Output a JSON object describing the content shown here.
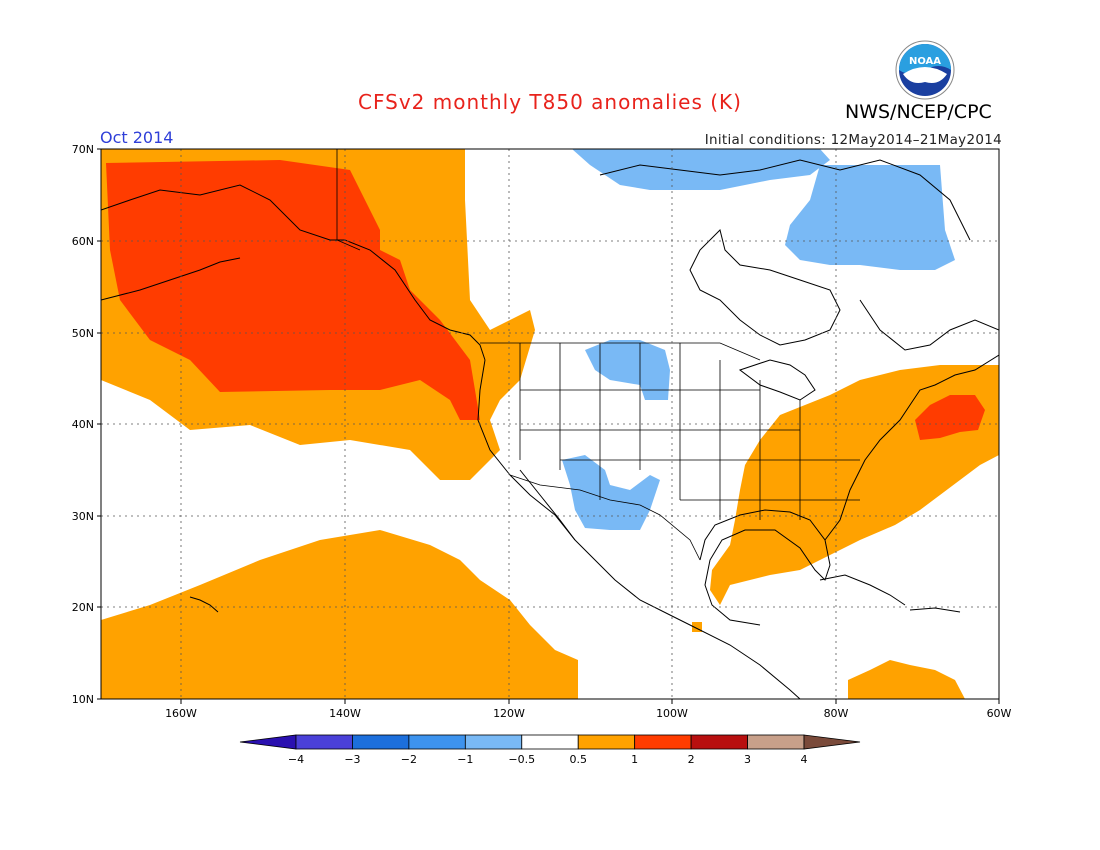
{
  "title": "CFSv2 monthly T850 anomalies (K)",
  "agency": "NWS/NCEP/CPC",
  "period": "Oct 2014",
  "initial_conditions": "Initial conditions: 12May2014–21May2014",
  "logo": {
    "text": "NOAA",
    "icon": "noaa-logo-icon",
    "colors": {
      "sky": "#2a9fe0",
      "ocean": "#1a3fa0"
    }
  },
  "map": {
    "lon_range": [
      -172,
      -60
    ],
    "lat_range": [
      10,
      70
    ],
    "lat_labels": [
      "70N",
      "60N",
      "50N",
      "40N",
      "30N",
      "20N",
      "10N"
    ],
    "lon_labels": [
      "160W",
      "140W",
      "120W",
      "100W",
      "80W",
      "60W"
    ]
  },
  "legend": {
    "labels": [
      "−4",
      "−3",
      "−2",
      "−1",
      "−0.5",
      "0.5",
      "1",
      "2",
      "3",
      "4"
    ],
    "colors": [
      "#2a10b0",
      "#4a40d8",
      "#1c6fdc",
      "#3d93ee",
      "#79b9f5",
      "#ffffff",
      "#ffa200",
      "#ff3c00",
      "#b80f0f",
      "#c8a08a",
      "#7a4a3a"
    ]
  },
  "anomaly_regions": [
    {
      "name": "alaska-gulf",
      "category": "1 to 2",
      "color": "#ff3c00"
    },
    {
      "name": "northeast-pacific",
      "category": "0.5 to 1",
      "color": "#ffa200"
    },
    {
      "name": "subtropical-pacific",
      "category": "0.5 to 1",
      "color": "#ffa200"
    },
    {
      "name": "eastern-us-atlantic",
      "category": "0.5 to 1",
      "color": "#ffa200"
    },
    {
      "name": "western-atlantic",
      "category": "1 to 2",
      "color": "#ff3c00"
    },
    {
      "name": "caribbean",
      "category": "0.5 to 1",
      "color": "#ffa200"
    },
    {
      "name": "canadian-arctic",
      "category": "-1 to -0.5",
      "color": "#79b9f5"
    },
    {
      "name": "hudson-bay",
      "category": "-1 to -0.5",
      "color": "#79b9f5"
    },
    {
      "name": "northern-plains",
      "category": "-1 to -0.5",
      "color": "#79b9f5"
    },
    {
      "name": "southwest-us",
      "category": "-1 to -0.5",
      "color": "#79b9f5"
    }
  ]
}
